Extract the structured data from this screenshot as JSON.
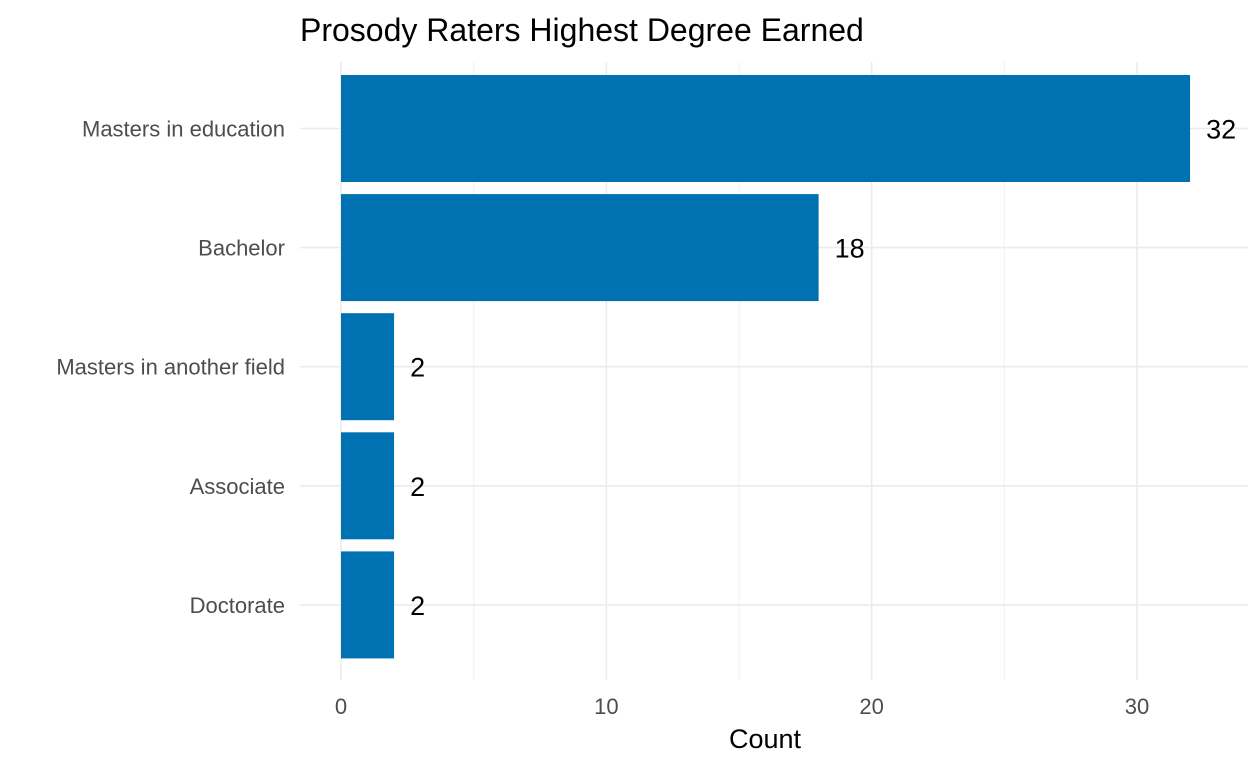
{
  "chart_data": {
    "type": "bar",
    "orientation": "horizontal",
    "title": "Prosody Raters Highest Degree Earned",
    "xlabel": "Count",
    "ylabel": "",
    "categories": [
      "Masters in education",
      "Bachelor",
      "Masters in another field",
      "Associate",
      "Doctorate"
    ],
    "values": [
      32,
      18,
      2,
      2,
      2
    ],
    "data_labels": [
      "32",
      "18",
      "2",
      "2",
      "2"
    ],
    "xlim": [
      0,
      33.7
    ],
    "x_ticks": [
      0,
      10,
      20,
      30
    ],
    "x_tick_labels": [
      "0",
      "10",
      "20",
      "30"
    ],
    "grid": true,
    "legend": "none",
    "bar_color": "#0072B2"
  }
}
